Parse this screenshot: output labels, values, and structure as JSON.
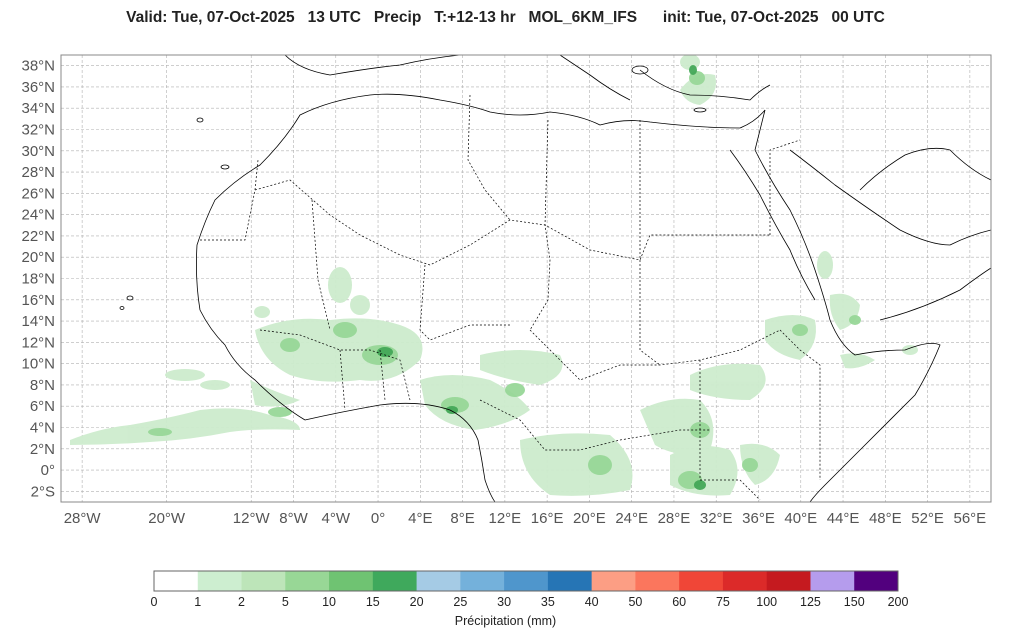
{
  "title": "Valid: Tue, 07-Oct-2025   13 UTC   Precip   T:+12-13 hr   MOL_6KM_IFS      init: Tue, 07-Oct-2025   00 UTC",
  "map": {
    "lat_labels": [
      "38°N",
      "36°N",
      "34°N",
      "32°N",
      "30°N",
      "28°N",
      "26°N",
      "24°N",
      "22°N",
      "20°N",
      "18°N",
      "16°N",
      "14°N",
      "12°N",
      "10°N",
      "8°N",
      "6°N",
      "4°N",
      "2°N",
      "0°",
      "2°S"
    ],
    "lat_values": [
      38,
      36,
      34,
      32,
      30,
      28,
      26,
      24,
      22,
      20,
      18,
      16,
      14,
      12,
      10,
      8,
      6,
      4,
      2,
      0,
      -2
    ],
    "lon_labels": [
      "28°W",
      "20°W",
      "12°W",
      "8°W",
      "4°W",
      "0°",
      "4°E",
      "8°E",
      "12°E",
      "16°E",
      "20°E",
      "24°E",
      "28°E",
      "32°E",
      "36°E",
      "40°E",
      "44°E",
      "48°E",
      "52°E",
      "56°E"
    ],
    "lon_values": [
      -28,
      -20,
      -12,
      -8,
      -4,
      0,
      4,
      8,
      12,
      16,
      20,
      24,
      28,
      32,
      36,
      40,
      44,
      48,
      52,
      56
    ],
    "extent": {
      "lon_min": -30,
      "lon_max": 58,
      "lat_min": -3,
      "lat_max": 39
    },
    "grid": true,
    "colors": {
      "coast": "#000000",
      "grid": "#b0b0b0",
      "light_rain": "#cdeccd",
      "moderate_rain": "#98d798",
      "heavy_rain": "#43a857"
    }
  },
  "colorbar": {
    "label": "Précipitation (mm)",
    "ticks": [
      "0",
      "1",
      "2",
      "5",
      "10",
      "15",
      "20",
      "25",
      "30",
      "35",
      "40",
      "50",
      "60",
      "75",
      "100",
      "125",
      "150",
      "200"
    ],
    "colors": [
      "#ffffff",
      "#cdeed0",
      "#bde5b9",
      "#98d796",
      "#6fc372",
      "#3fa95c",
      "#a5cbe5",
      "#74b1db",
      "#4f96cc",
      "#2675b5",
      "#fc9e84",
      "#fb765d",
      "#f04637",
      "#dc2a29",
      "#c51a1f",
      "#b59ced",
      "#52007e"
    ]
  }
}
